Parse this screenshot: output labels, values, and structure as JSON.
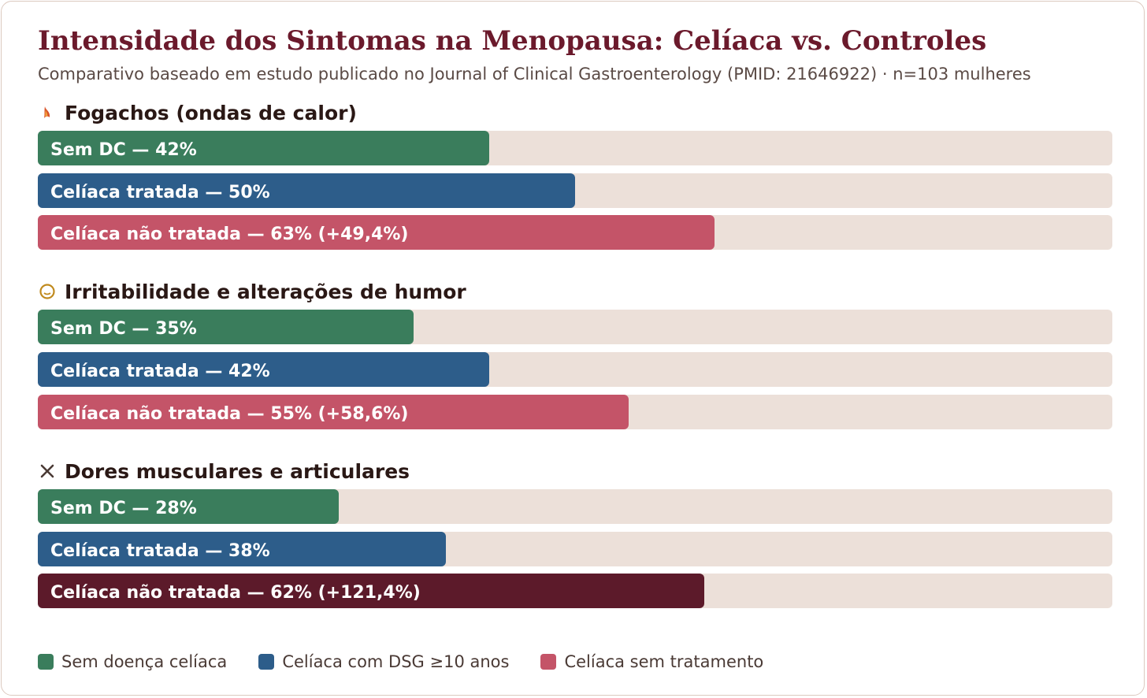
{
  "colors": {
    "sem_dc": "#3a7d5c",
    "tratada": "#2d5d8a",
    "nao_tratada": "#c45468",
    "nao_tratada_highlight": "#5c1a2a"
  },
  "header": {
    "title": "Intensidade dos Sintomas na Menopausa: Celíaca vs. Controles",
    "subtitle": "Comparativo baseado em estudo publicado no Journal of Clinical Gastroenterology (PMID: 21646922) · n=103 mulheres"
  },
  "legend": [
    {
      "label": "Sem doença celíaca",
      "color_key": "sem_dc"
    },
    {
      "label": "Celíaca com DSG ≥10 anos",
      "color_key": "tratada"
    },
    {
      "label": "Celíaca sem tratamento",
      "color_key": "nao_tratada"
    }
  ],
  "chart_data": {
    "type": "bar",
    "orientation": "horizontal",
    "title": "Intensidade dos Sintomas na Menopausa: Celíaca vs. Controles",
    "xlim": [
      0,
      100
    ],
    "sections": [
      {
        "name": "Fogachos (ondas de calor)",
        "icon": "flame-icon",
        "bars": [
          {
            "series": "sem_dc",
            "value": 42,
            "label": "Sem DC — 42%"
          },
          {
            "series": "tratada",
            "value": 50,
            "label": "Celíaca tratada — 50%"
          },
          {
            "series": "nao_tratada",
            "value": 63,
            "label": "Celíaca não tratada — 63% (+49,4%)",
            "highlight": false
          }
        ]
      },
      {
        "name": "Irritabilidade e alterações de humor",
        "icon": "mood-icon",
        "bars": [
          {
            "series": "sem_dc",
            "value": 35,
            "label": "Sem DC — 35%"
          },
          {
            "series": "tratada",
            "value": 42,
            "label": "Celíaca tratada — 42%"
          },
          {
            "series": "nao_tratada",
            "value": 55,
            "label": "Celíaca não tratada — 55% (+58,6%)",
            "highlight": false
          }
        ]
      },
      {
        "name": "Dores musculares e articulares",
        "icon": "cross-icon",
        "bars": [
          {
            "series": "sem_dc",
            "value": 28,
            "label": "Sem DC — 28%"
          },
          {
            "series": "tratada",
            "value": 38,
            "label": "Celíaca tratada — 38%"
          },
          {
            "series": "nao_tratada",
            "value": 62,
            "label": "Celíaca não tratada — 62% (+121,4%)",
            "highlight": true
          }
        ]
      }
    ]
  }
}
